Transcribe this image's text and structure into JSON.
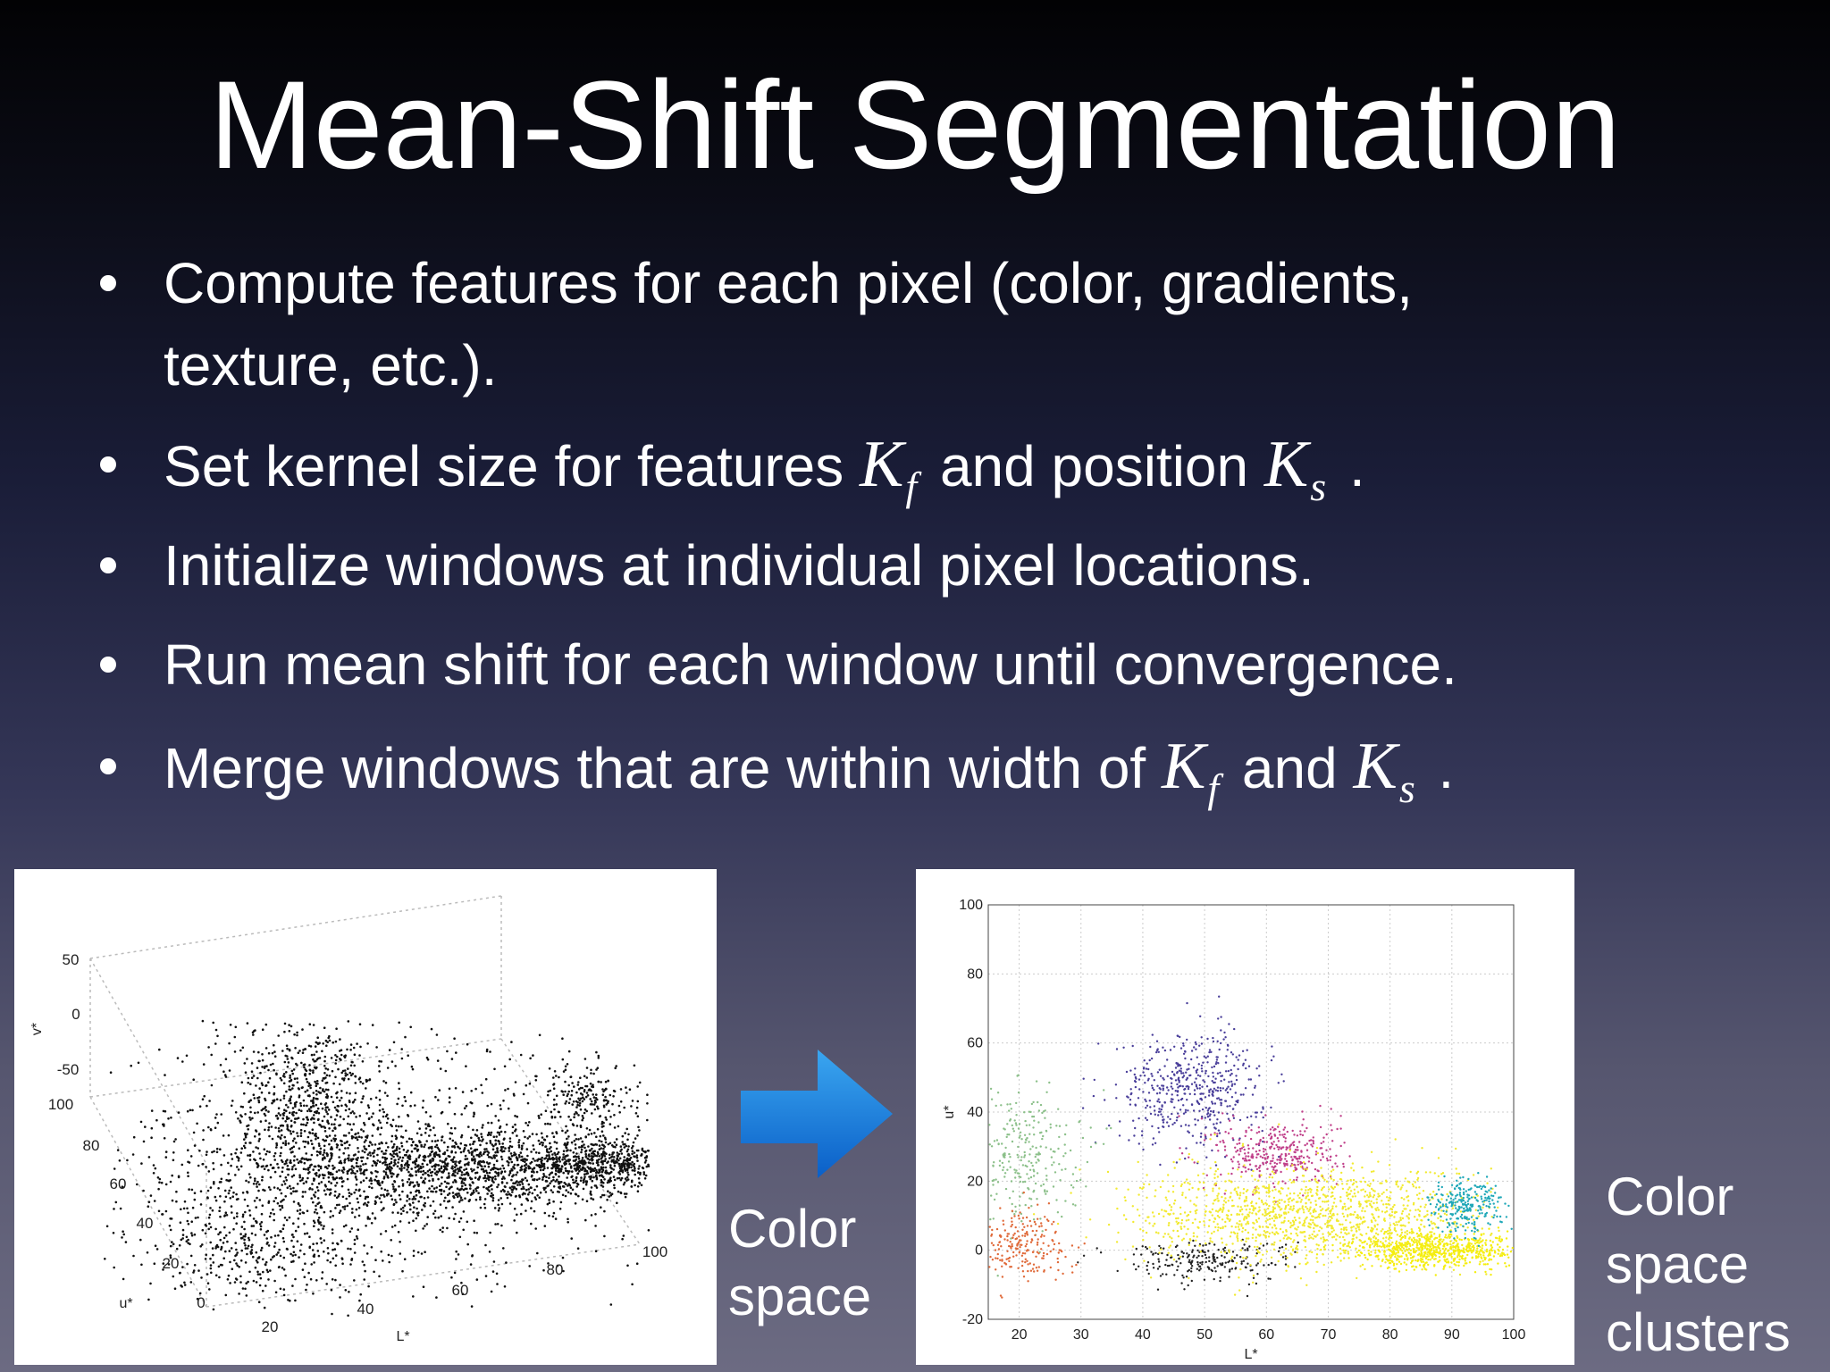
{
  "title": "Mean-Shift Segmentation",
  "bullets": [
    [
      "Compute features for each pixel (color, gradients,",
      "texture, etc.)."
    ],
    [
      "Set kernel size for features ",
      {
        "math": "K",
        "sub": "f"
      },
      " and position ",
      {
        "math": "K",
        "sub": "s"
      },
      " ."
    ],
    [
      "Initialize windows at individual pixel locations."
    ],
    [
      "Run mean shift for each window until convergence."
    ],
    [
      "Merge windows that are within width of ",
      {
        "math": "K",
        "sub": "f"
      },
      " and ",
      {
        "math": "K",
        "sub": "s"
      },
      " ."
    ]
  ],
  "left_figure": {
    "caption": [
      "Color",
      "space"
    ],
    "v_label": "v*",
    "v_ticks": [
      "50",
      "0",
      "-50"
    ],
    "u_label": "u*",
    "u_ticks": [
      "100",
      "80",
      "60",
      "40",
      "20",
      "0"
    ],
    "l_label": "L*",
    "l_ticks": [
      "20",
      "40",
      "60",
      "80",
      "100"
    ]
  },
  "right_figure": {
    "caption": [
      "Color",
      "space",
      "clusters"
    ],
    "xlabel": "L*",
    "ylabel": "u*",
    "xlim": [
      15,
      100
    ],
    "xticks": [
      20,
      30,
      40,
      50,
      60,
      70,
      80,
      90,
      100
    ],
    "ylim": [
      -20,
      100
    ],
    "yticks": [
      -20,
      0,
      20,
      40,
      60,
      80,
      100
    ],
    "grid": true
  }
}
